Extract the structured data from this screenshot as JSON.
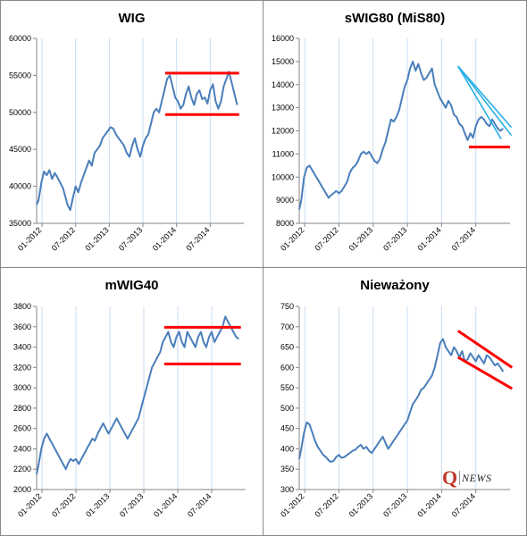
{
  "chart_data": [
    {
      "type": "line",
      "title": "WIG",
      "xlabel": "",
      "ylabel": "",
      "ylim": [
        35000,
        60000
      ],
      "yticks": [
        35000,
        40000,
        45000,
        50000,
        55000,
        60000
      ],
      "xlim": [
        2011.92,
        2015.0
      ],
      "xticks": [
        "01-2012",
        "07-2012",
        "01-2013",
        "07-2013",
        "01-2014",
        "07-2014"
      ],
      "series": [
        {
          "color": "#4a7ebb",
          "x": [
            2011.92,
            2011.95,
            2011.99,
            2012.03,
            2012.07,
            2012.11,
            2012.15,
            2012.19,
            2012.23,
            2012.27,
            2012.31,
            2012.35,
            2012.38,
            2012.42,
            2012.46,
            2012.5,
            2012.54,
            2012.58,
            2012.62,
            2012.66,
            2012.7,
            2012.74,
            2012.78,
            2012.82,
            2012.86,
            2012.9,
            2012.94,
            2012.98,
            2013.02,
            2013.06,
            2013.1,
            2013.14,
            2013.18,
            2013.22,
            2013.26,
            2013.3,
            2013.34,
            2013.38,
            2013.42,
            2013.46,
            2013.5,
            2013.54,
            2013.58,
            2013.62,
            2013.66,
            2013.7,
            2013.74,
            2013.78,
            2013.82,
            2013.86,
            2013.9,
            2013.94,
            2013.98,
            2014.02,
            2014.06,
            2014.1,
            2014.14,
            2014.18,
            2014.22,
            2014.26,
            2014.3,
            2014.34,
            2014.38,
            2014.42,
            2014.46,
            2014.5,
            2014.54,
            2014.58,
            2014.62,
            2014.66,
            2014.7,
            2014.74,
            2014.78,
            2014.82,
            2014.86,
            2014.9
          ],
          "values": [
            37500,
            38200,
            40500,
            42000,
            41500,
            42200,
            41000,
            41800,
            41200,
            40500,
            39800,
            38500,
            37500,
            36800,
            38500,
            40000,
            39200,
            40500,
            41500,
            42500,
            43500,
            42800,
            44500,
            45000,
            45500,
            46500,
            47000,
            47500,
            48000,
            47800,
            47000,
            46500,
            46000,
            45500,
            44500,
            44000,
            45500,
            46500,
            45000,
            44000,
            45500,
            46500,
            47000,
            48500,
            50000,
            50500,
            50000,
            51500,
            53000,
            54500,
            55000,
            53500,
            52000,
            51500,
            50500,
            51000,
            52500,
            53500,
            52000,
            51000,
            52500,
            53000,
            51800,
            52000,
            51200,
            53000,
            53800,
            51500,
            50500,
            51500,
            53500,
            54500,
            55500,
            54000,
            52500,
            51000
          ]
        }
      ],
      "annotations": [
        {
          "color": "#ff0000",
          "x": [
            2013.83,
            2014.93
          ],
          "y": [
            55300,
            55300
          ]
        },
        {
          "color": "#ff0000",
          "x": [
            2013.83,
            2014.93
          ],
          "y": [
            49700,
            49700
          ]
        }
      ]
    },
    {
      "type": "line",
      "title": "sWIG80 (MiS80)",
      "xlabel": "",
      "ylabel": "",
      "ylim": [
        8000,
        16000
      ],
      "yticks": [
        8000,
        9000,
        10000,
        11000,
        12000,
        13000,
        14000,
        15000,
        16000
      ],
      "xlim": [
        2011.92,
        2015.0
      ],
      "xticks": [
        "01-2012",
        "07-2012",
        "01-2013",
        "07-2013",
        "01-2014",
        "07-2014"
      ],
      "series": [
        {
          "color": "#4a7ebb",
          "x": [
            2011.92,
            2011.95,
            2011.99,
            2012.03,
            2012.07,
            2012.11,
            2012.15,
            2012.19,
            2012.23,
            2012.27,
            2012.31,
            2012.35,
            2012.38,
            2012.42,
            2012.46,
            2012.5,
            2012.54,
            2012.58,
            2012.62,
            2012.66,
            2012.7,
            2012.74,
            2012.78,
            2012.82,
            2012.86,
            2012.9,
            2012.94,
            2012.98,
            2013.02,
            2013.06,
            2013.1,
            2013.14,
            2013.18,
            2013.22,
            2013.26,
            2013.3,
            2013.34,
            2013.38,
            2013.42,
            2013.46,
            2013.5,
            2013.54,
            2013.58,
            2013.62,
            2013.66,
            2013.7,
            2013.74,
            2013.78,
            2013.82,
            2013.86,
            2013.9,
            2013.94,
            2013.98,
            2014.02,
            2014.06,
            2014.1,
            2014.14,
            2014.18,
            2014.22,
            2014.26,
            2014.3,
            2014.34,
            2014.38,
            2014.42,
            2014.46,
            2014.5,
            2014.54,
            2014.58,
            2014.62,
            2014.66,
            2014.7,
            2014.74,
            2014.78,
            2014.82,
            2014.86,
            2014.9
          ],
          "values": [
            8600,
            9000,
            10000,
            10400,
            10500,
            10300,
            10100,
            9900,
            9700,
            9500,
            9300,
            9100,
            9200,
            9300,
            9400,
            9300,
            9400,
            9600,
            9800,
            10200,
            10400,
            10500,
            10700,
            11000,
            11100,
            11000,
            11100,
            10900,
            10700,
            10600,
            10800,
            11200,
            11500,
            12000,
            12500,
            12400,
            12600,
            12900,
            13400,
            13900,
            14200,
            14700,
            15000,
            14600,
            14900,
            14500,
            14200,
            14300,
            14500,
            14700,
            14000,
            13700,
            13400,
            13200,
            13000,
            13300,
            13100,
            12700,
            12600,
            12300,
            12200,
            11900,
            11600,
            11900,
            11700,
            12200,
            12500,
            12600,
            12500,
            12300,
            12200,
            12500,
            12300,
            12100,
            12000,
            12100
          ]
        }
      ],
      "annotations": [
        {
          "color": "#ff0000",
          "x": [
            2014.4,
            2015.0
          ],
          "y": [
            11300,
            11300
          ]
        },
        {
          "color": "#29b0e6",
          "x": [
            2014.24,
            2014.87
          ],
          "y": [
            14800,
            11650
          ]
        },
        {
          "color": "#29b0e6",
          "x": [
            2014.24,
            2015.02
          ],
          "y": [
            14800,
            11800
          ]
        },
        {
          "color": "#29b0e6",
          "x": [
            2014.24,
            2015.02
          ],
          "y": [
            14800,
            12150
          ]
        }
      ]
    },
    {
      "type": "line",
      "title": "mWIG40",
      "xlabel": "",
      "ylabel": "",
      "ylim": [
        2000,
        3800
      ],
      "yticks": [
        2000,
        2200,
        2400,
        2600,
        2800,
        3000,
        3200,
        3400,
        3600,
        3800
      ],
      "xlim": [
        2011.92,
        2015.0
      ],
      "xticks": [
        "01-2012",
        "07-2012",
        "01-2013",
        "07-2013",
        "01-2014",
        "07-2014"
      ],
      "series": [
        {
          "color": "#4a7ebb",
          "x": [
            2011.92,
            2011.95,
            2011.99,
            2012.03,
            2012.07,
            2012.11,
            2012.15,
            2012.19,
            2012.23,
            2012.27,
            2012.31,
            2012.35,
            2012.38,
            2012.42,
            2012.46,
            2012.5,
            2012.54,
            2012.58,
            2012.62,
            2012.66,
            2012.7,
            2012.74,
            2012.78,
            2012.82,
            2012.86,
            2012.9,
            2012.94,
            2012.98,
            2013.02,
            2013.06,
            2013.1,
            2013.14,
            2013.18,
            2013.22,
            2013.26,
            2013.3,
            2013.34,
            2013.38,
            2013.42,
            2013.46,
            2013.5,
            2013.54,
            2013.58,
            2013.62,
            2013.66,
            2013.7,
            2013.74,
            2013.78,
            2013.82,
            2013.86,
            2013.9,
            2013.94,
            2013.98,
            2014.02,
            2014.06,
            2014.1,
            2014.14,
            2014.18,
            2014.22,
            2014.26,
            2014.3,
            2014.34,
            2014.38,
            2014.42,
            2014.46,
            2014.5,
            2014.54,
            2014.58,
            2014.62,
            2014.66,
            2014.7,
            2014.74,
            2014.78,
            2014.82,
            2014.86,
            2014.9
          ],
          "values": [
            2150,
            2250,
            2400,
            2500,
            2550,
            2500,
            2450,
            2400,
            2350,
            2300,
            2250,
            2200,
            2250,
            2300,
            2280,
            2300,
            2250,
            2300,
            2350,
            2400,
            2450,
            2500,
            2480,
            2550,
            2600,
            2650,
            2600,
            2550,
            2600,
            2650,
            2700,
            2650,
            2600,
            2550,
            2500,
            2550,
            2600,
            2650,
            2700,
            2800,
            2900,
            3000,
            3100,
            3200,
            3250,
            3300,
            3350,
            3450,
            3500,
            3550,
            3450,
            3400,
            3500,
            3550,
            3450,
            3400,
            3550,
            3500,
            3450,
            3400,
            3500,
            3550,
            3450,
            3400,
            3500,
            3550,
            3450,
            3500,
            3550,
            3600,
            3700,
            3650,
            3600,
            3550,
            3500,
            3480
          ]
        }
      ],
      "annotations": [
        {
          "color": "#ff0000",
          "x": [
            2013.8,
            2014.93
          ],
          "y": [
            3595,
            3595
          ]
        },
        {
          "color": "#ff0000",
          "x": [
            2013.8,
            2014.93
          ],
          "y": [
            3235,
            3235
          ]
        }
      ]
    },
    {
      "type": "line",
      "title": "Nieważony",
      "xlabel": "",
      "ylabel": "",
      "ylim": [
        300,
        750
      ],
      "yticks": [
        300,
        350,
        400,
        450,
        500,
        550,
        600,
        650,
        700,
        750
      ],
      "xlim": [
        2011.92,
        2015.0
      ],
      "xticks": [
        "01-2012",
        "07-2012",
        "01-2013",
        "07-2013",
        "01-2014",
        "07-2014"
      ],
      "series": [
        {
          "color": "#4a7ebb",
          "x": [
            2011.92,
            2011.95,
            2011.99,
            2012.03,
            2012.07,
            2012.11,
            2012.15,
            2012.19,
            2012.23,
            2012.27,
            2012.31,
            2012.35,
            2012.38,
            2012.42,
            2012.46,
            2012.5,
            2012.54,
            2012.58,
            2012.62,
            2012.66,
            2012.7,
            2012.74,
            2012.78,
            2012.82,
            2012.86,
            2012.9,
            2012.94,
            2012.98,
            2013.02,
            2013.06,
            2013.1,
            2013.14,
            2013.18,
            2013.22,
            2013.26,
            2013.3,
            2013.34,
            2013.38,
            2013.42,
            2013.46,
            2013.5,
            2013.54,
            2013.58,
            2013.62,
            2013.66,
            2013.7,
            2013.74,
            2013.78,
            2013.82,
            2013.86,
            2013.9,
            2013.94,
            2013.98,
            2014.02,
            2014.06,
            2014.1,
            2014.14,
            2014.18,
            2014.22,
            2014.26,
            2014.3,
            2014.34,
            2014.38,
            2014.42,
            2014.46,
            2014.5,
            2014.54,
            2014.58,
            2014.62,
            2014.66,
            2014.7,
            2014.74,
            2014.78,
            2014.82,
            2014.86,
            2014.9
          ],
          "values": [
            375,
            400,
            440,
            465,
            460,
            440,
            420,
            405,
            395,
            385,
            380,
            372,
            368,
            370,
            380,
            385,
            378,
            380,
            385,
            390,
            395,
            398,
            405,
            410,
            400,
            405,
            395,
            390,
            400,
            410,
            420,
            430,
            415,
            400,
            410,
            420,
            430,
            440,
            450,
            460,
            470,
            490,
            510,
            520,
            530,
            545,
            550,
            560,
            570,
            580,
            600,
            630,
            660,
            670,
            650,
            640,
            630,
            650,
            640,
            625,
            640,
            615,
            620,
            635,
            625,
            615,
            630,
            620,
            610,
            630,
            625,
            615,
            605,
            610,
            600,
            590
          ]
        }
      ],
      "annotations": [
        {
          "color": "#ff0000",
          "x": [
            2014.24,
            2015.03
          ],
          "y": [
            690,
            600
          ]
        },
        {
          "color": "#ff0000",
          "x": [
            2014.24,
            2015.03
          ],
          "y": [
            625,
            548
          ]
        }
      ]
    }
  ],
  "logo": {
    "mark": "Q",
    "text": "NEWS"
  }
}
